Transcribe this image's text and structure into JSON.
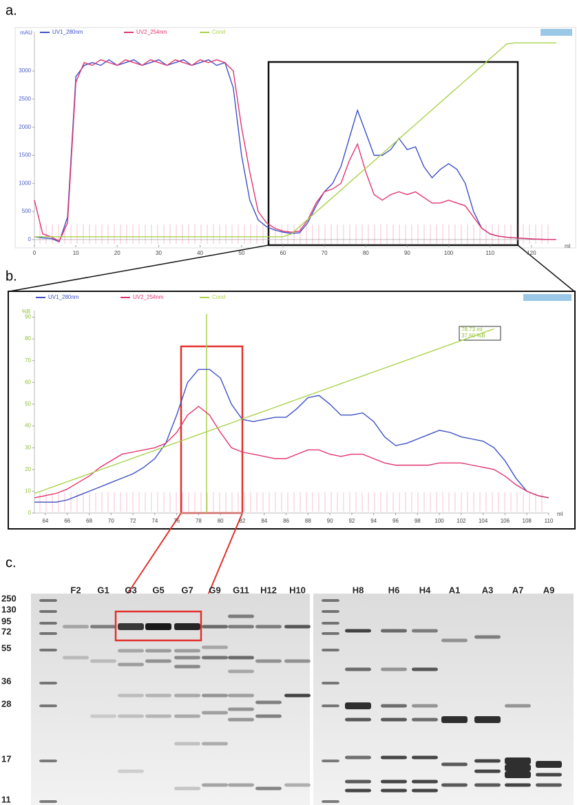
{
  "panel_labels": [
    "a.",
    "b.",
    "c."
  ],
  "chart_data": [
    {
      "type": "line",
      "x_label": "ml",
      "y_label": "mAU",
      "xlim": [
        0,
        126
      ],
      "ylim": [
        -100,
        3700
      ],
      "xticks": [
        0,
        10,
        20,
        30,
        40,
        50,
        60,
        70,
        80,
        90,
        100,
        110,
        120
      ],
      "yticks": [
        0,
        500,
        1000,
        1500,
        2000,
        2500,
        3000
      ],
      "ytick_color": "#4a5cc8",
      "x": [
        0,
        2,
        4,
        6,
        8,
        10,
        12,
        14,
        16,
        18,
        20,
        22,
        24,
        26,
        28,
        30,
        32,
        34,
        36,
        38,
        40,
        42,
        44,
        46,
        48,
        50,
        52,
        54,
        56,
        58,
        60,
        62,
        64,
        66,
        68,
        70,
        72,
        74,
        76,
        78,
        80,
        82,
        84,
        86,
        88,
        90,
        92,
        94,
        96,
        98,
        100,
        102,
        104,
        106,
        108,
        110,
        112,
        114,
        116,
        118,
        120,
        122,
        124,
        126
      ],
      "series": [
        {
          "name": "UV1_280nm",
          "color": "#3c4fc6",
          "values": [
            50,
            30,
            20,
            -40,
            400,
            2900,
            3100,
            3150,
            3100,
            3200,
            3100,
            3150,
            3200,
            3100,
            3150,
            3200,
            3100,
            3150,
            3200,
            3100,
            3150,
            3200,
            3100,
            3150,
            2700,
            1500,
            700,
            350,
            230,
            170,
            130,
            110,
            120,
            300,
            600,
            850,
            1000,
            1300,
            1800,
            2300,
            1900,
            1500,
            1500,
            1600,
            1800,
            1600,
            1650,
            1300,
            1100,
            1250,
            1350,
            1250,
            1000,
            500,
            200,
            100,
            60,
            40,
            30,
            20,
            10,
            5,
            0,
            0
          ]
        },
        {
          "name": "UV2_254nm",
          "color": "#e2336c",
          "values": [
            700,
            100,
            50,
            -30,
            300,
            2800,
            3150,
            3100,
            3200,
            3150,
            3100,
            3200,
            3150,
            3100,
            3200,
            3150,
            3100,
            3200,
            3150,
            3100,
            3200,
            3150,
            3200,
            3150,
            3000,
            2000,
            1200,
            500,
            300,
            200,
            150,
            130,
            150,
            350,
            650,
            850,
            900,
            1000,
            1400,
            1700,
            1200,
            800,
            700,
            800,
            850,
            800,
            850,
            750,
            650,
            650,
            700,
            650,
            600,
            400,
            200,
            100,
            60,
            40,
            30,
            20,
            10,
            5,
            0,
            0
          ]
        },
        {
          "name": "Cond",
          "color": "#a9d24a",
          "values": [
            50,
            50,
            50,
            50,
            50,
            50,
            50,
            50,
            50,
            50,
            50,
            50,
            50,
            50,
            50,
            50,
            50,
            50,
            50,
            50,
            50,
            50,
            50,
            50,
            50,
            50,
            50,
            50,
            50,
            50,
            50,
            100,
            230,
            360,
            490,
            620,
            750,
            880,
            1010,
            1140,
            1270,
            1400,
            1530,
            1660,
            1790,
            1920,
            2050,
            2180,
            2310,
            2440,
            2570,
            2700,
            2830,
            2960,
            3090,
            3220,
            3350,
            3480,
            3500,
            3500,
            3500,
            3500,
            3500,
            3500
          ]
        }
      ]
    },
    {
      "type": "line",
      "x_label": "ml",
      "y_label": "%B",
      "xlim": [
        63,
        110
      ],
      "ylim": [
        0,
        93
      ],
      "xticks": [
        64,
        66,
        68,
        70,
        72,
        74,
        76,
        78,
        80,
        82,
        84,
        86,
        88,
        90,
        92,
        94,
        96,
        98,
        100,
        102,
        104,
        106,
        108,
        110
      ],
      "yticks": [
        0,
        10,
        20,
        30,
        40,
        50,
        60,
        70,
        80,
        90
      ],
      "ytick_color": "#8fbf30",
      "marker_x": 78.73,
      "annotations": [
        "78.73 ml",
        "37.60 %B"
      ],
      "x": [
        63,
        64,
        65,
        66,
        67,
        68,
        69,
        70,
        71,
        72,
        73,
        74,
        75,
        76,
        77,
        78,
        79,
        80,
        81,
        82,
        83,
        84,
        85,
        86,
        87,
        88,
        89,
        90,
        91,
        92,
        93,
        94,
        95,
        96,
        97,
        98,
        99,
        100,
        101,
        102,
        103,
        104,
        105,
        106,
        107,
        108,
        109,
        110
      ],
      "series": [
        {
          "name": "UV1_280nm",
          "color": "#3c4fc6",
          "values": [
            5,
            5,
            5,
            6,
            8,
            10,
            12,
            14,
            16,
            18,
            21,
            25,
            32,
            45,
            60,
            66,
            66,
            62,
            50,
            43,
            42,
            43,
            44,
            44,
            48,
            53,
            54,
            50,
            45,
            45,
            46,
            42,
            35,
            31,
            32,
            34,
            36,
            38,
            37,
            35,
            34,
            33,
            30,
            24,
            16,
            10,
            8,
            7
          ]
        },
        {
          "name": "UV2_254nm",
          "color": "#e2336c",
          "values": [
            7,
            8,
            9,
            11,
            14,
            17,
            21,
            24,
            27,
            28,
            29,
            30,
            32,
            37,
            45,
            49,
            45,
            37,
            30,
            28,
            27,
            26,
            25,
            25,
            27,
            29,
            29,
            27,
            26,
            27,
            27,
            25,
            23,
            22,
            22,
            22,
            22,
            23,
            23,
            23,
            22,
            21,
            20,
            17,
            13,
            10,
            8,
            7
          ]
        },
        {
          "name": "Cond",
          "color": "#a9d24a",
          "values": [
            9.0,
            10.8,
            12.6,
            14.4,
            16.2,
            18.0,
            19.8,
            21.6,
            23.4,
            25.2,
            27.0,
            28.8,
            30.6,
            32.4,
            34.2,
            36.0,
            37.8,
            39.6,
            41.4,
            43.2,
            45.0,
            46.8,
            48.6,
            50.4,
            52.2,
            54.0,
            55.8,
            57.6,
            59.4,
            61.2,
            63.0,
            64.8,
            66.6,
            68.4,
            70.2,
            72.0,
            73.8,
            75.6,
            77.4,
            79.2,
            81.0,
            82.8,
            84.6,
            null,
            null,
            null,
            null,
            null
          ]
        }
      ]
    }
  ],
  "gel": {
    "ladder_labels": [
      "250",
      "130",
      "95",
      "72",
      "55",
      "36",
      "28",
      "17",
      "11"
    ],
    "left_lanes": [
      "F2",
      "G1",
      "G3",
      "G5",
      "G7",
      "G9",
      "G11",
      "H12",
      "H10"
    ],
    "right_lanes": [
      "H8",
      "H6",
      "H4",
      "A1",
      "A3",
      "A7",
      "A9"
    ]
  }
}
